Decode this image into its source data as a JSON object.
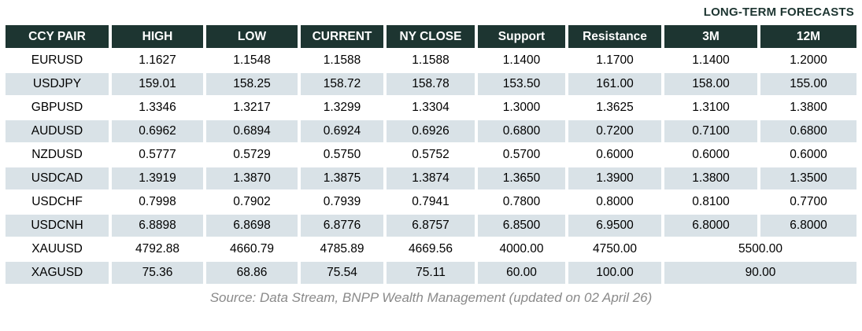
{
  "long_term_label": "LONG-TERM FORECASTS",
  "chart_data": {
    "type": "table",
    "title": "LONG-TERM FORECASTS",
    "columns": [
      "CCY PAIR",
      "HIGH",
      "LOW",
      "CURRENT",
      "NY CLOSE",
      "Support",
      "Resistance",
      "3M",
      "12M"
    ],
    "rows": [
      {
        "pair": "EURUSD",
        "values": [
          "1.1627",
          "1.1548",
          "1.1588",
          "1.1588",
          "1.1400",
          "1.1700",
          "1.1400",
          "1.2000"
        ],
        "merged_forecast": null
      },
      {
        "pair": "USDJPY",
        "values": [
          "159.01",
          "158.25",
          "158.72",
          "158.78",
          "153.50",
          "161.00",
          "158.00",
          "155.00"
        ],
        "merged_forecast": null
      },
      {
        "pair": "GBPUSD",
        "values": [
          "1.3346",
          "1.3217",
          "1.3299",
          "1.3304",
          "1.3000",
          "1.3625",
          "1.3100",
          "1.3800"
        ],
        "merged_forecast": null
      },
      {
        "pair": "AUDUSD",
        "values": [
          "0.6962",
          "0.6894",
          "0.6924",
          "0.6926",
          "0.6800",
          "0.7200",
          "0.7100",
          "0.6800"
        ],
        "merged_forecast": null
      },
      {
        "pair": "NZDUSD",
        "values": [
          "0.5777",
          "0.5729",
          "0.5750",
          "0.5752",
          "0.5700",
          "0.6000",
          "0.6000",
          "0.6000"
        ],
        "merged_forecast": null
      },
      {
        "pair": "USDCAD",
        "values": [
          "1.3919",
          "1.3870",
          "1.3875",
          "1.3874",
          "1.3650",
          "1.3900",
          "1.3800",
          "1.3500"
        ],
        "merged_forecast": null
      },
      {
        "pair": "USDCHF",
        "values": [
          "0.7998",
          "0.7902",
          "0.7939",
          "0.7941",
          "0.7800",
          "0.8000",
          "0.8100",
          "0.7700"
        ],
        "merged_forecast": null
      },
      {
        "pair": "USDCNH",
        "values": [
          "6.8898",
          "6.8698",
          "6.8776",
          "6.8757",
          "6.8500",
          "6.9500",
          "6.8000",
          "6.8000"
        ],
        "merged_forecast": null
      },
      {
        "pair": "XAUUSD",
        "values": [
          "4792.88",
          "4660.79",
          "4785.89",
          "4669.56",
          "4000.00",
          "4750.00"
        ],
        "merged_forecast": "5500.00"
      },
      {
        "pair": "XAGUSD",
        "values": [
          "75.36",
          "68.86",
          "75.54",
          "75.11",
          "60.00",
          "100.00"
        ],
        "merged_forecast": "90.00"
      }
    ],
    "source": "Source: Data Stream, BNPP Wealth Management (updated on 02 April 26)"
  },
  "footer_text": "Source: Data Stream, BNPP Wealth Management (updated on 02 April 26)",
  "colors": {
    "header_bg": "#1d3531",
    "row_alt_bg": "#d9e2e7",
    "note_color": "#1d3531",
    "footer_color": "#8a8a8a"
  }
}
